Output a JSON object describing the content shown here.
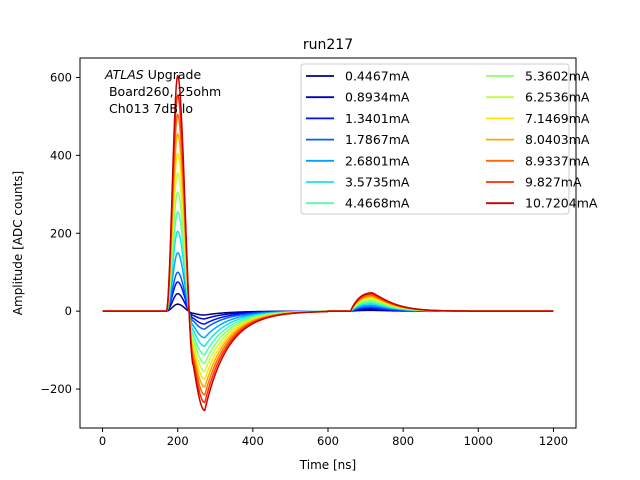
{
  "chart_data": {
    "type": "line",
    "title": "run217",
    "xlabel": "Time [ns]",
    "ylabel": "Amplitude [ADC counts]",
    "xlim": [
      -60,
      1260
    ],
    "ylim": [
      -300,
      650
    ],
    "xticks": [
      0,
      200,
      400,
      600,
      800,
      1000,
      1200
    ],
    "yticks": [
      -200,
      0,
      200,
      400,
      600
    ],
    "xtick_labels": [
      "0",
      "200",
      "400",
      "600",
      "800",
      "1000",
      "1200"
    ],
    "ytick_labels": [
      "−200",
      "0",
      "200",
      "400",
      "600"
    ],
    "annotation": {
      "line1_italic": "ATLAS",
      "line1_rest": " Upgrade",
      "line2": " Board260, 25ohm",
      "line3": " Ch013 7dB lo"
    },
    "legend": {
      "placement": "top-right",
      "columns": 2
    },
    "waveform_shape": {
      "baseline": 0,
      "pulse_start_ns": 170,
      "peak_time_ns": 200,
      "undershoot_time_ns": 272,
      "undershoot_recovery_ns": 600,
      "bump_start_ns": 660,
      "bump_peak_time_ns": 718,
      "end_ns": 1200
    },
    "series": [
      {
        "name": "0.4467mA",
        "color": "#00007f",
        "peak": 18,
        "undershoot": -10,
        "bump": 2
      },
      {
        "name": "0.8934mA",
        "color": "#0000c8",
        "peak": 45,
        "undershoot": -20,
        "bump": 5
      },
      {
        "name": "1.3401mA",
        "color": "#0010ff",
        "peak": 75,
        "undershoot": -33,
        "bump": 8
      },
      {
        "name": "1.7867mA",
        "color": "#0060ff",
        "peak": 100,
        "undershoot": -46,
        "bump": 11
      },
      {
        "name": "2.6801mA",
        "color": "#00a4ff",
        "peak": 150,
        "undershoot": -68,
        "bump": 15
      },
      {
        "name": "3.5735mA",
        "color": "#13e4e4",
        "peak": 205,
        "undershoot": -90,
        "bump": 19
      },
      {
        "name": "4.4668mA",
        "color": "#4bffad",
        "peak": 255,
        "undershoot": -112,
        "bump": 23
      },
      {
        "name": "5.3602mA",
        "color": "#8cff6d",
        "peak": 305,
        "undershoot": -134,
        "bump": 27
      },
      {
        "name": "6.2536mA",
        "color": "#c1ff36",
        "peak": 355,
        "undershoot": -155,
        "bump": 31
      },
      {
        "name": "7.1469mA",
        "color": "#ffe500",
        "peak": 405,
        "undershoot": -175,
        "bump": 35
      },
      {
        "name": "8.0403mA",
        "color": "#ffa700",
        "peak": 455,
        "undershoot": -195,
        "bump": 38
      },
      {
        "name": "8.9337mA",
        "color": "#ff6800",
        "peak": 505,
        "undershoot": -215,
        "bump": 41
      },
      {
        "name": "9.827mA",
        "color": "#ff2900",
        "peak": 555,
        "undershoot": -235,
        "bump": 44
      },
      {
        "name": "10.7204mA",
        "color": "#c80000",
        "peak": 605,
        "undershoot": -255,
        "bump": 47
      }
    ]
  }
}
